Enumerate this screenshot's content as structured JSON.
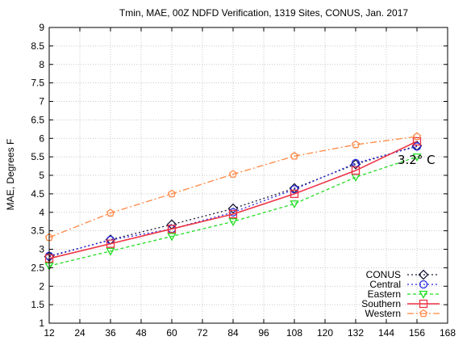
{
  "chart_data": {
    "type": "line",
    "title": "Tmin, MAE, 00Z NDFD Verification, 1319 Sites, CONUS, Jan. 2017",
    "xlabel": "",
    "ylabel": "MAE, Degrees F",
    "xlim": [
      12,
      168
    ],
    "ylim": [
      1,
      9
    ],
    "xticks": [
      12,
      24,
      36,
      48,
      60,
      72,
      84,
      96,
      108,
      120,
      132,
      144,
      156,
      168
    ],
    "yticks": [
      "1",
      "1.5",
      "2",
      "2.5",
      "3",
      "3.5",
      "4",
      "4.5",
      "5",
      "5.5",
      "6",
      "6.5",
      "7",
      "7.5",
      "8",
      "8.5",
      "9"
    ],
    "grid": true,
    "legend_position": "bottom-right",
    "x": [
      12,
      36,
      60,
      84,
      108,
      132,
      156
    ],
    "series": [
      {
        "name": "CONUS",
        "color": "#1a1a3a",
        "dash": "2,3",
        "marker": "diamond",
        "values": [
          2.8,
          3.26,
          3.67,
          4.1,
          4.65,
          5.3,
          5.8
        ]
      },
      {
        "name": "Central",
        "color": "#2828e0",
        "dash": "2,3",
        "marker": "circle",
        "values": [
          2.82,
          3.25,
          3.55,
          4.0,
          4.62,
          5.33,
          5.78
        ]
      },
      {
        "name": "Eastern",
        "color": "#22dd22",
        "dash": "4,3",
        "marker": "triangle-down",
        "values": [
          2.55,
          2.95,
          3.35,
          3.75,
          4.23,
          4.95,
          5.5
        ]
      },
      {
        "name": "Southern",
        "color": "#ee3344",
        "dash": "",
        "marker": "square",
        "values": [
          2.75,
          3.15,
          3.55,
          3.95,
          4.5,
          5.13,
          5.92
        ]
      },
      {
        "name": "Western",
        "color": "#ff8844",
        "dash": "8,3,2,3",
        "marker": "pentagon",
        "values": [
          3.32,
          3.98,
          4.5,
          5.03,
          5.52,
          5.83,
          6.05
        ]
      }
    ],
    "annotation": "3.2° C"
  }
}
